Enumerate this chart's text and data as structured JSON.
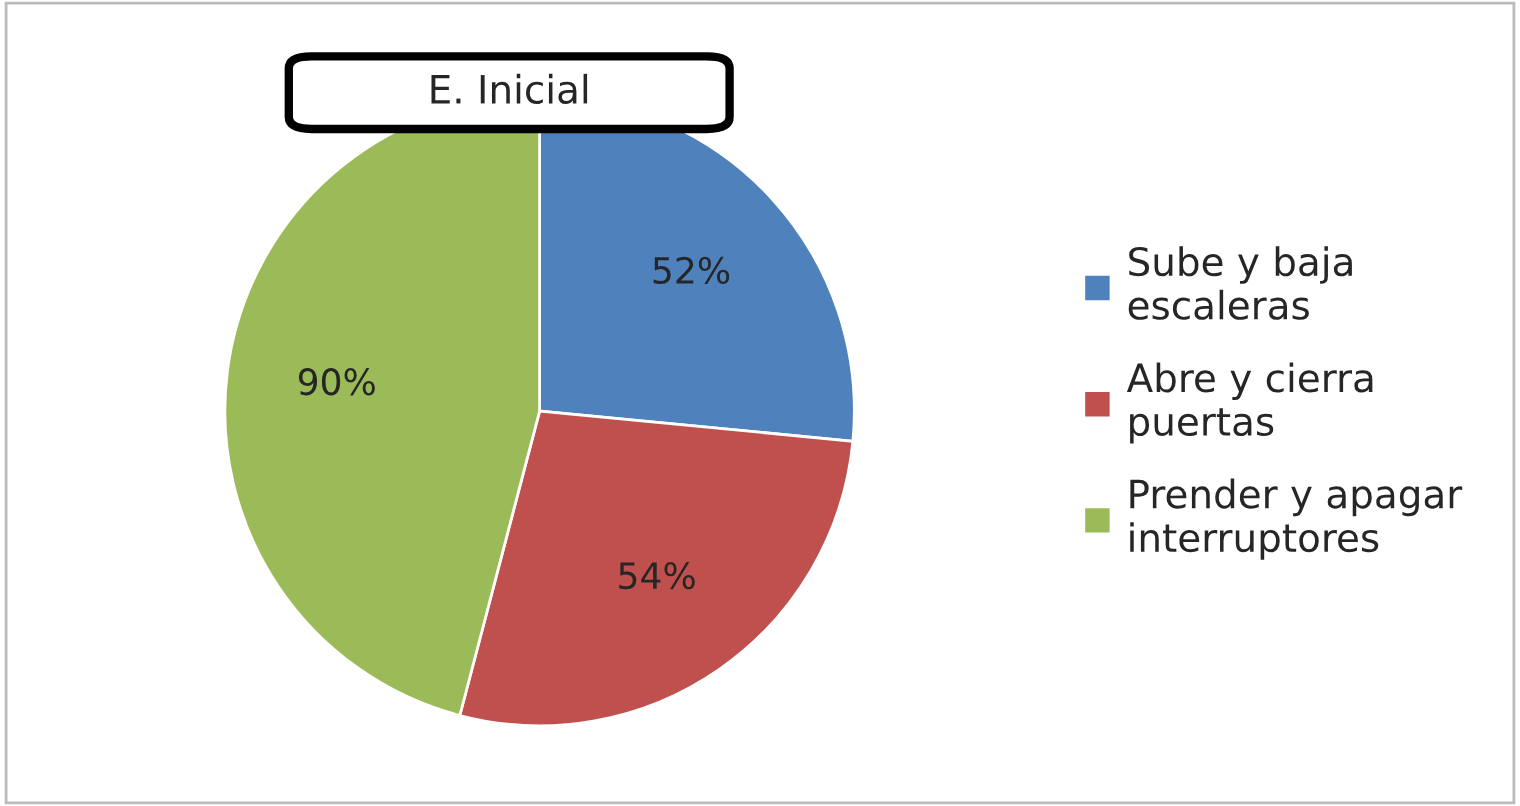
{
  "chart_data": {
    "type": "pie",
    "title": "E. Inicial",
    "categories": [
      "Sube y baja escaleras",
      "Abre y cierra puertas",
      "Prender y apagar interruptores"
    ],
    "values": [
      52,
      54,
      90
    ],
    "colors": [
      "#4f81bd",
      "#c0504d",
      "#9bbb59"
    ],
    "value_labels": [
      "52%",
      "54%",
      "90%"
    ],
    "legend": "right"
  }
}
